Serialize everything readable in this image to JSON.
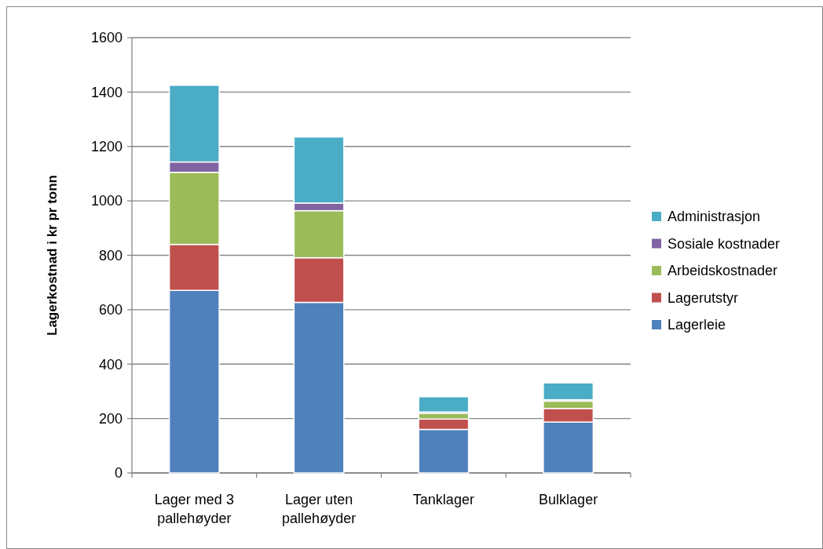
{
  "chart_data": {
    "type": "bar",
    "stacked": true,
    "ylabel": "Lagerkostnad i kr pr tonn",
    "categories": [
      "Lager med 3 pallehøyder",
      "Lager uten pallehøyder",
      "Tanklager",
      "Bulklager"
    ],
    "series": [
      {
        "name": "Lagerleie",
        "color": "#4f81bd",
        "values": [
          671,
          627,
          160,
          187
        ]
      },
      {
        "name": "Lagerutstyr",
        "color": "#c0504d",
        "values": [
          169,
          164,
          38,
          50
        ]
      },
      {
        "name": "Arbeidskostnader",
        "color": "#9bbb59",
        "values": [
          265,
          173,
          21,
          27
        ]
      },
      {
        "name": "Sosiale kostnader",
        "color": "#8064a2",
        "values": [
          38,
          28,
          5,
          5
        ]
      },
      {
        "name": "Administrasjon",
        "color": "#4bacc6",
        "values": [
          282,
          243,
          56,
          62
        ]
      }
    ],
    "ylim": [
      0,
      1600
    ],
    "yticks": [
      0,
      200,
      400,
      600,
      800,
      1000,
      1200,
      1400,
      1600
    ],
    "grid": "y",
    "legend": "right"
  }
}
